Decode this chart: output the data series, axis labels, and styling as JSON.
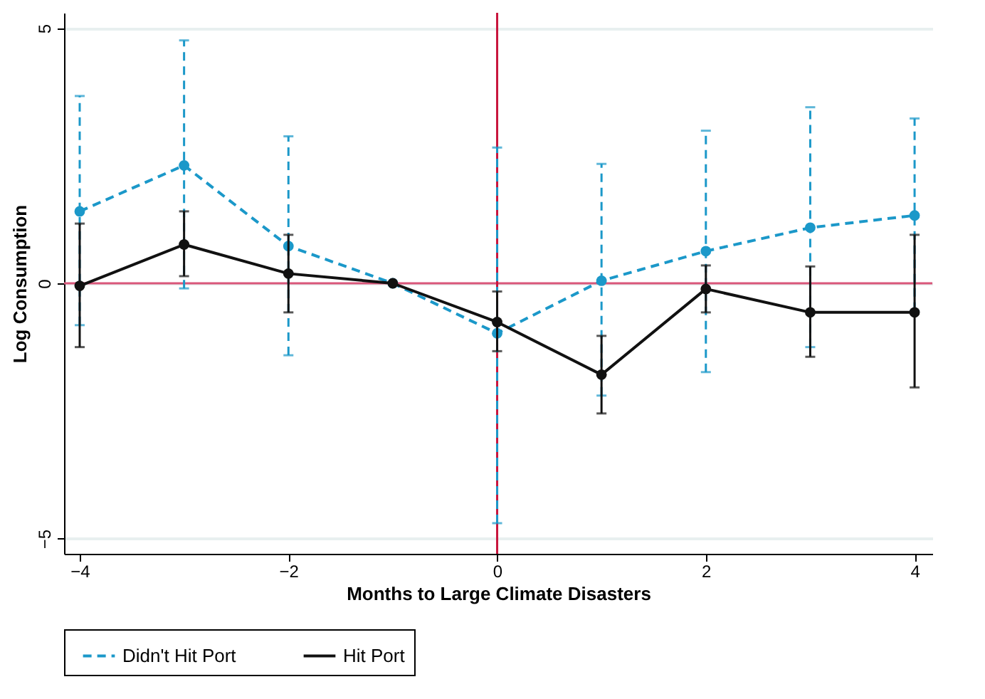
{
  "chart_data": {
    "type": "line",
    "xlabel": "Months to Large Climate Disasters",
    "ylabel": "Log Consumption",
    "x": [
      -4,
      -3,
      -2,
      -1,
      0,
      1,
      2,
      3,
      4
    ],
    "xlim": [
      -4.15,
      4.17
    ],
    "xticks": [
      -4,
      -2,
      0,
      2,
      4
    ],
    "ylim": [
      -5.3,
      5.3
    ],
    "yticks": [
      -5,
      0,
      5
    ],
    "grid": "y",
    "legend": "bottom",
    "marker": "circle",
    "series": [
      {
        "name": "Didn't Hit Port",
        "color": "#1b98c9",
        "line_style": "dashed",
        "values": [
          1.41,
          2.31,
          0.73,
          0,
          -0.98,
          0.05,
          0.63,
          1.09,
          1.33
        ],
        "errors": [
          [
            -0.82,
            3.67
          ],
          [
            -0.1,
            4.76
          ],
          [
            -1.41,
            2.88
          ],
          null,
          [
            -4.7,
            2.66
          ],
          [
            -2.2,
            2.34
          ],
          [
            -1.74,
            2.99
          ],
          [
            -1.25,
            3.45
          ],
          [
            -0.54,
            3.23
          ]
        ]
      },
      {
        "name": "Hit Port",
        "color": "#111111",
        "line_style": "solid",
        "values": [
          -0.05,
          0.76,
          0.19,
          0,
          -0.76,
          -1.79,
          -0.11,
          -0.57,
          -0.57
        ],
        "errors": [
          [
            -1.25,
            1.17
          ],
          [
            0.14,
            1.41
          ],
          [
            -0.57,
            0.95
          ],
          null,
          [
            -1.33,
            -0.16
          ],
          [
            -2.55,
            -1.03
          ],
          [
            -0.57,
            0.35
          ],
          [
            -1.44,
            0.33
          ],
          [
            -2.04,
            0.95
          ]
        ]
      }
    ],
    "ref_lines": [
      {
        "axis": "y",
        "value": 0,
        "color": "#d9577a"
      },
      {
        "axis": "x",
        "value": 0,
        "color": "#c8143c"
      }
    ]
  }
}
